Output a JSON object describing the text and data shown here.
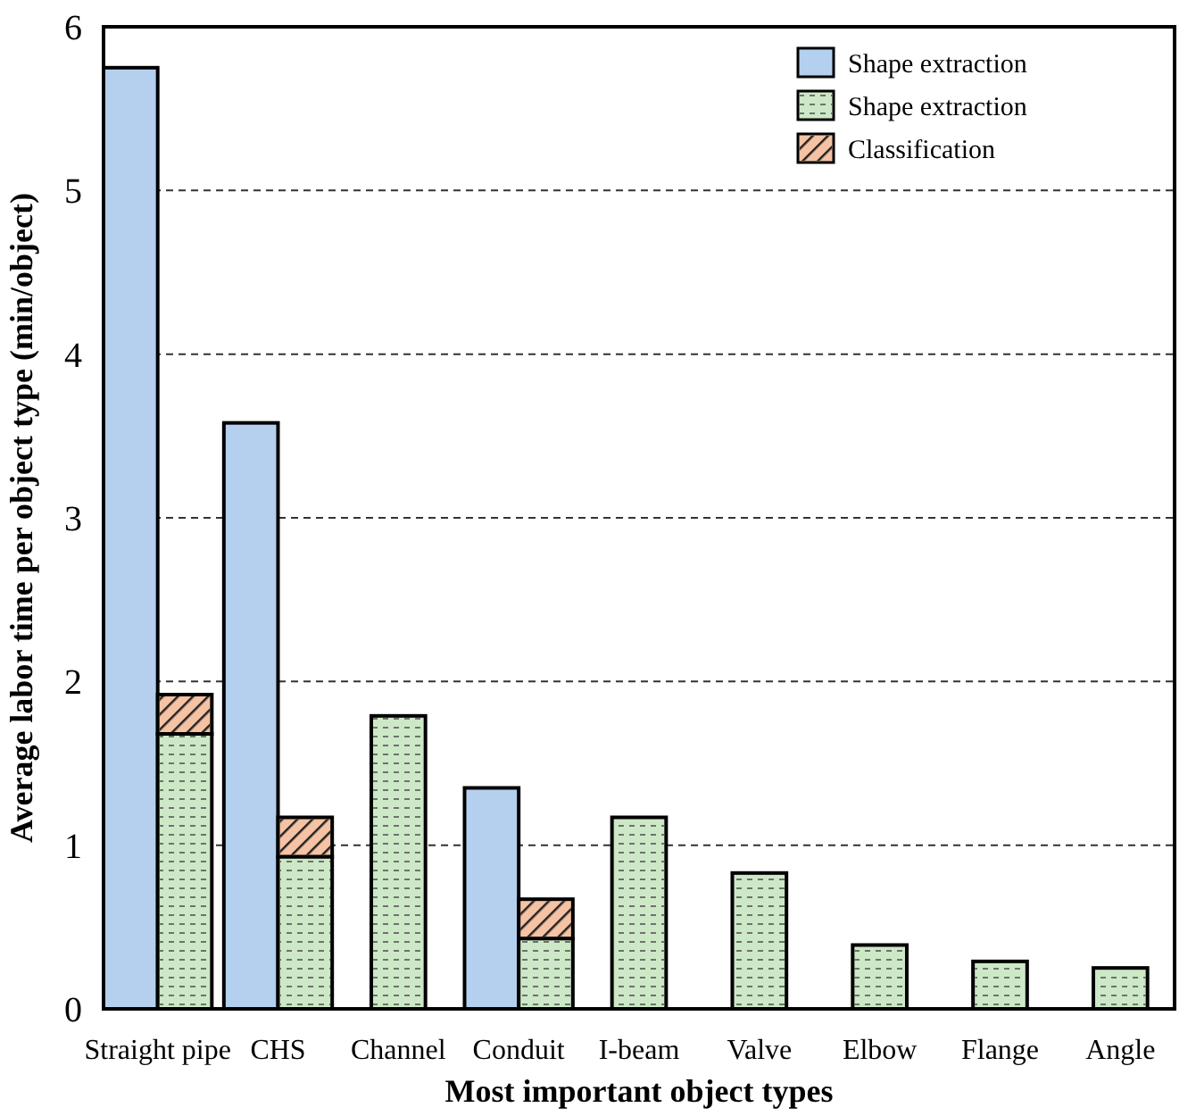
{
  "chart_data": {
    "type": "bar",
    "xlabel": "Most important object types",
    "ylabel": "Average labor time per object type (min/object)",
    "categories": [
      "Straight pipe",
      "CHS",
      "Channel",
      "Conduit",
      "I-beam",
      "Valve",
      "Elbow",
      "Flange",
      "Angle"
    ],
    "series": [
      {
        "name": "Shape extraction",
        "color": "#b4d0ee",
        "values": [
          5.75,
          3.58,
          null,
          1.35,
          null,
          null,
          null,
          null,
          null
        ]
      },
      {
        "name": "Shape extraction",
        "color": "#cde8c6",
        "values": [
          1.68,
          0.93,
          1.79,
          0.43,
          1.17,
          0.83,
          0.39,
          0.29,
          0.25
        ]
      },
      {
        "name": "Classification",
        "color": "#f5c2a3",
        "values": [
          0.24,
          0.24,
          null,
          0.24,
          null,
          null,
          null,
          null,
          null
        ],
        "base": [
          1.68,
          0.93,
          null,
          0.43,
          null,
          null,
          null,
          null,
          null
        ]
      }
    ],
    "ylim": [
      0,
      6
    ],
    "yticks": [
      0,
      1,
      2,
      3,
      4,
      5,
      6
    ],
    "grid": "y",
    "legend": "top right"
  }
}
